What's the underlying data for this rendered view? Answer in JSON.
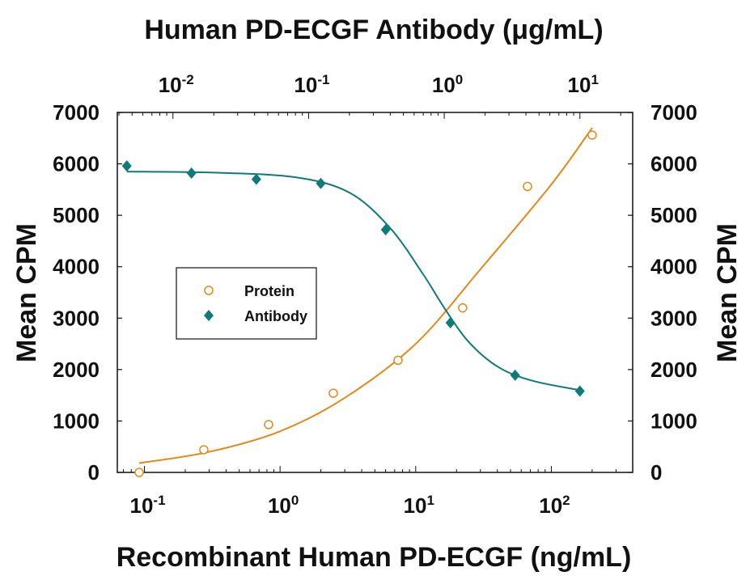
{
  "chart_data": {
    "type": "scatter",
    "title": "Human PD-ECGF Antibody (μg/mL)",
    "xlabel": "Recombinant Human PD-ECGF (ng/mL)",
    "x2label": "Human PD-ECGF Antibody (μg/mL)",
    "ylabel": "Mean CPM",
    "y2label": "Mean CPM",
    "xscale": "log",
    "xlim": [
      0.0631,
      398
    ],
    "x2lim": [
      0.00389,
      24.5
    ],
    "ylim": [
      0,
      7000
    ],
    "y_ticks": [
      0,
      1000,
      2000,
      3000,
      4000,
      5000,
      6000,
      7000
    ],
    "x_ticks": [
      {
        "value": 0.1,
        "base": "10",
        "exp": "-1"
      },
      {
        "value": 1,
        "base": "10",
        "exp": "0"
      },
      {
        "value": 10,
        "base": "10",
        "exp": "1"
      },
      {
        "value": 100,
        "base": "10",
        "exp": "2"
      }
    ],
    "x2_ticks": [
      {
        "value": 0.01,
        "base": "10",
        "exp": "-2"
      },
      {
        "value": 0.1,
        "base": "10",
        "exp": "-1"
      },
      {
        "value": 1,
        "base": "10",
        "exp": "0"
      },
      {
        "value": 10,
        "base": "10",
        "exp": "1"
      }
    ],
    "grid": false,
    "legend_position": "center-left",
    "series": [
      {
        "name": "Protein",
        "marker": "open-circle",
        "color": "#e08a1e",
        "axis": "bottom",
        "points": [
          {
            "x": 0.0914,
            "y": 0
          },
          {
            "x": 0.274,
            "y": 440
          },
          {
            "x": 0.823,
            "y": 930
          },
          {
            "x": 2.47,
            "y": 1540
          },
          {
            "x": 7.41,
            "y": 2180
          },
          {
            "x": 22.2,
            "y": 3200
          },
          {
            "x": 66.7,
            "y": 5560
          },
          {
            "x": 200,
            "y": 6560
          }
        ],
        "fit": [
          {
            "x": 0.0914,
            "y": 180
          },
          {
            "x": 0.3,
            "y": 400
          },
          {
            "x": 1,
            "y": 800
          },
          {
            "x": 3,
            "y": 1450
          },
          {
            "x": 10,
            "y": 2500
          },
          {
            "x": 30,
            "y": 3950
          },
          {
            "x": 100,
            "y": 5600
          },
          {
            "x": 200,
            "y": 6700
          }
        ]
      },
      {
        "name": "Antibody",
        "marker": "filled-diamond",
        "color": "#0f7a78",
        "axis": "top",
        "points": [
          {
            "x": 0.00457,
            "y": 5960
          },
          {
            "x": 0.0137,
            "y": 5820
          },
          {
            "x": 0.0412,
            "y": 5700
          },
          {
            "x": 0.123,
            "y": 5620
          },
          {
            "x": 0.37,
            "y": 4720
          },
          {
            "x": 1.11,
            "y": 2910
          },
          {
            "x": 3.33,
            "y": 1890
          },
          {
            "x": 10,
            "y": 1580
          }
        ],
        "fit": [
          {
            "x": 0.00457,
            "y": 5850
          },
          {
            "x": 0.02,
            "y": 5830
          },
          {
            "x": 0.08,
            "y": 5740
          },
          {
            "x": 0.2,
            "y": 5440
          },
          {
            "x": 0.4,
            "y": 4750
          },
          {
            "x": 0.7,
            "y": 3850
          },
          {
            "x": 1.0,
            "y": 3200
          },
          {
            "x": 1.5,
            "y": 2550
          },
          {
            "x": 2.5,
            "y": 2050
          },
          {
            "x": 4.5,
            "y": 1780
          },
          {
            "x": 10,
            "y": 1600
          }
        ]
      }
    ]
  },
  "legend": {
    "protein_label": "Protein",
    "antibody_label": "Antibody"
  }
}
